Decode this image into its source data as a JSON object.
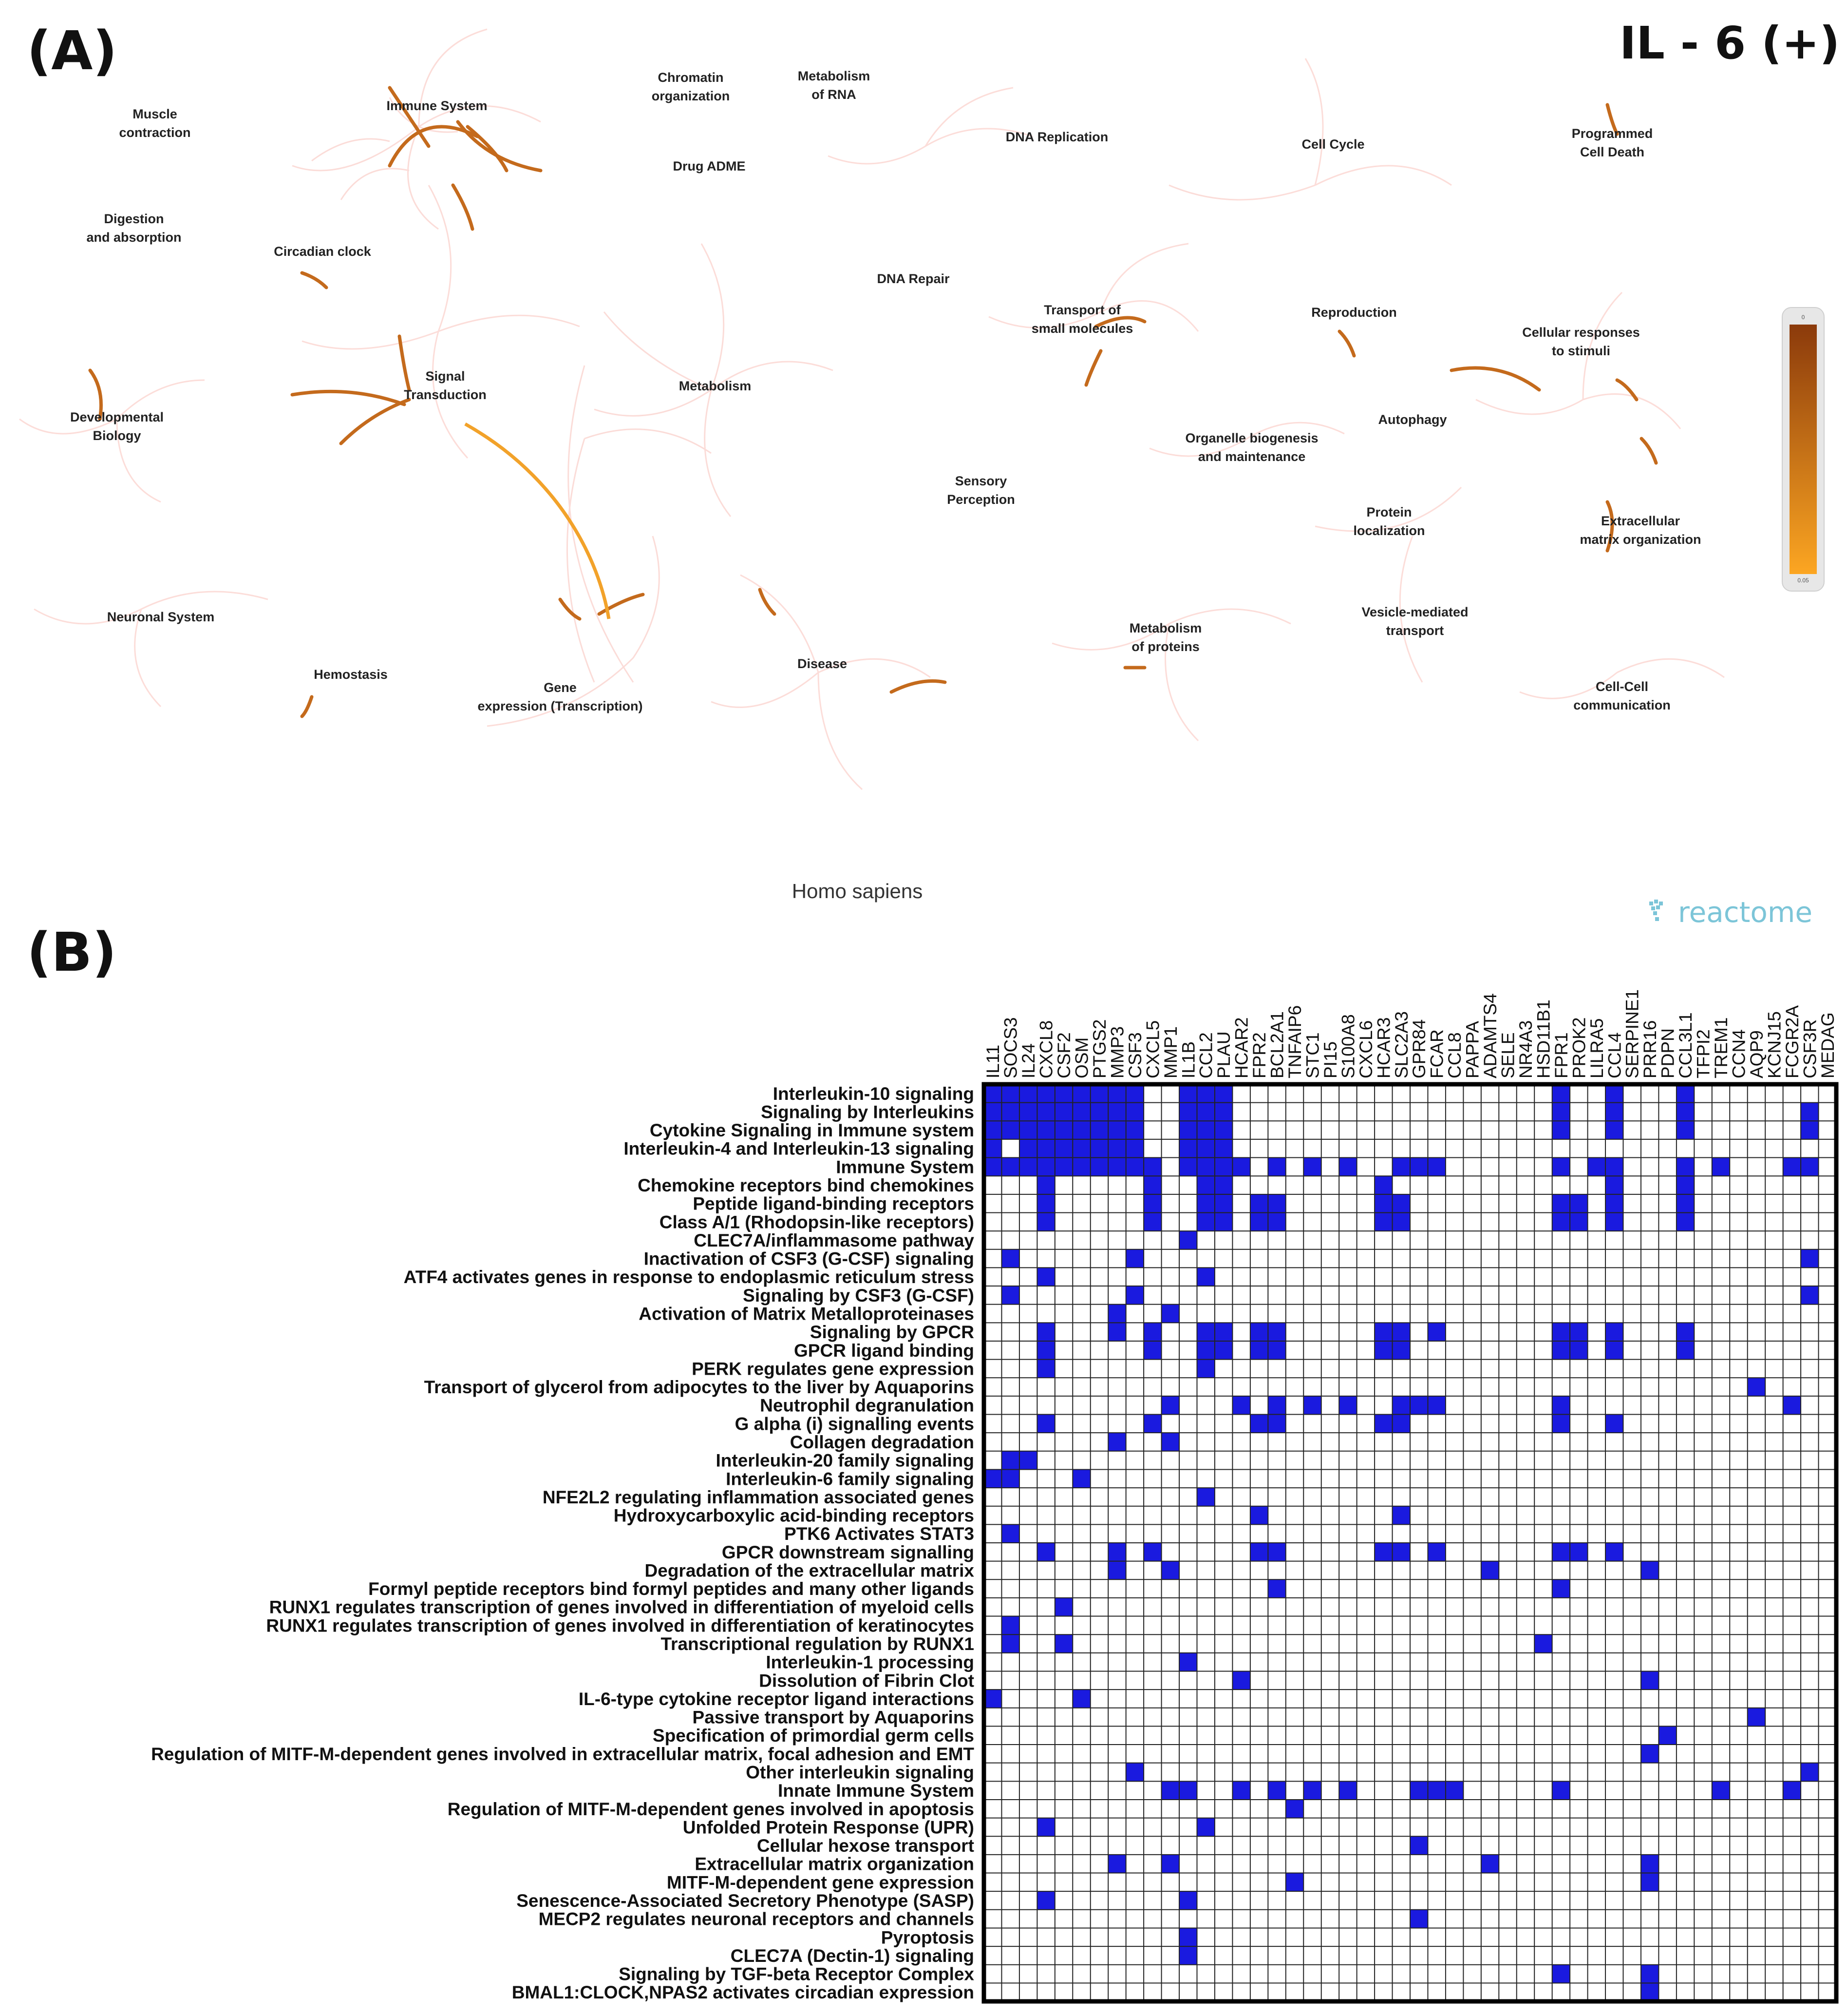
{
  "panel_a": {
    "label": "(A)",
    "condition": "IL - 6 (+)",
    "species": "Homo sapiens",
    "brand": "reactome",
    "legend": {
      "top_value": "0",
      "bottom_value": "0.05",
      "color_top": "#8b3a0b",
      "color_bottom": "#fca622"
    },
    "nodes": [
      {
        "id": "muscle",
        "label": "Muscle\ncontraction"
      },
      {
        "id": "immune",
        "label": "Immune System"
      },
      {
        "id": "chromatin",
        "label": "Chromatin\norganization"
      },
      {
        "id": "metrna",
        "label": "Metabolism\nof RNA"
      },
      {
        "id": "dnarep",
        "label": "DNA Replication"
      },
      {
        "id": "cellcycle",
        "label": "Cell Cycle"
      },
      {
        "id": "pcd",
        "label": "Programmed\nCell Death"
      },
      {
        "id": "digestion",
        "label": "Digestion\nand absorption"
      },
      {
        "id": "drugadme",
        "label": "Drug ADME"
      },
      {
        "id": "circadian",
        "label": "Circadian clock"
      },
      {
        "id": "dnarepair",
        "label": "DNA Repair"
      },
      {
        "id": "transport",
        "label": "Transport of\nsmall molecules"
      },
      {
        "id": "reproduction",
        "label": "Reproduction"
      },
      {
        "id": "cellresp",
        "label": "Cellular responses\nto stimuli"
      },
      {
        "id": "signal",
        "label": "Signal\nTransduction"
      },
      {
        "id": "metabolism",
        "label": "Metabolism"
      },
      {
        "id": "devbio",
        "label": "Developmental\nBiology"
      },
      {
        "id": "autophagy",
        "label": "Autophagy"
      },
      {
        "id": "organelle",
        "label": "Organelle biogenesis\nand maintenance"
      },
      {
        "id": "sensory",
        "label": "Sensory\nPerception"
      },
      {
        "id": "protloc",
        "label": "Protein\nlocalization"
      },
      {
        "id": "ecm",
        "label": "Extracellular\nmatrix organization"
      },
      {
        "id": "neuronal",
        "label": "Neuronal System"
      },
      {
        "id": "vesicle",
        "label": "Vesicle-mediated\ntransport"
      },
      {
        "id": "metprot",
        "label": "Metabolism\nof proteins"
      },
      {
        "id": "hemostasis",
        "label": "Hemostasis"
      },
      {
        "id": "disease",
        "label": "Disease"
      },
      {
        "id": "geneexp",
        "label": "Gene\nexpression (Transcription)"
      },
      {
        "id": "cellcell",
        "label": "Cell-Cell\ncommunication"
      }
    ]
  },
  "panel_b": {
    "label": "(B)"
  },
  "chart_data": {
    "type": "heatmap",
    "title": "",
    "colors": {
      "present": "#1a1adf",
      "absent": "#ffffff"
    },
    "columns": [
      "IL11",
      "SOCS3",
      "IL24",
      "CXCL8",
      "CSF2",
      "OSM",
      "PTGS2",
      "MMP3",
      "CSF3",
      "CXCL5",
      "MMP1",
      "IL1B",
      "CCL2",
      "PLAU",
      "HCAR2",
      "FPR2",
      "BCL2A1",
      "TNFAIP6",
      "STC1",
      "PI15",
      "S100A8",
      "CXCL6",
      "HCAR3",
      "SLC2A3",
      "GPR84",
      "FCAR",
      "CCL8",
      "PAPPA",
      "ADAMTS4",
      "SELE",
      "NR4A3",
      "HSD11B1",
      "FPR1",
      "PROK2",
      "LILRA5",
      "CCL4",
      "SERPINE1",
      "PRR16",
      "PDPN",
      "CCL3L1",
      "TFPI2",
      "TREM1",
      "CCN4",
      "AQP9",
      "KCNJ15",
      "FCGR2A",
      "CSF3R",
      "MEDAG"
    ],
    "rows": [
      "Interleukin-10 signaling",
      "Signaling by Interleukins",
      "Cytokine Signaling in Immune system",
      "Interleukin-4 and Interleukin-13 signaling",
      "Immune System",
      "Chemokine receptors bind chemokines",
      "Peptide ligand-binding receptors",
      "Class A/1 (Rhodopsin-like receptors)",
      "CLEC7A/inflammasome pathway",
      "Inactivation of CSF3 (G-CSF) signaling",
      "ATF4 activates genes in response to endoplasmic reticulum  stress",
      "Signaling by CSF3 (G-CSF)",
      "Activation of Matrix Metalloproteinases",
      "Signaling by GPCR",
      "GPCR ligand binding",
      "PERK regulates gene expression",
      "Transport of glycerol from adipocytes to the liver by Aquaporins",
      "Neutrophil degranulation",
      "G alpha (i) signalling events",
      "Collagen degradation",
      "Interleukin-20 family signaling",
      "Interleukin-6 family signaling",
      "NFE2L2 regulating inflammation associated genes",
      "Hydroxycarboxylic acid-binding receptors",
      "PTK6 Activates STAT3",
      "GPCR downstream signalling",
      "Degradation of the extracellular matrix",
      "Formyl peptide receptors bind formyl peptides and many other ligands",
      "RUNX1 regulates transcription of genes involved in differentiation of myeloid cells",
      "RUNX1 regulates transcription of genes involved in differentiation of keratinocytes",
      "Transcriptional regulation by RUNX1",
      "Interleukin-1 processing",
      "Dissolution of Fibrin Clot",
      "IL-6-type cytokine receptor ligand interactions",
      "Passive transport by Aquaporins",
      "Specification of primordial germ cells",
      "Regulation of MITF-M-dependent genes involved in extracellular matrix, focal adhesion and EMT",
      "Other interleukin signaling",
      "Innate Immune System",
      "Regulation of MITF-M-dependent genes involved in apoptosis",
      "Unfolded Protein Response (UPR)",
      "Cellular hexose transport",
      "Extracellular matrix organization",
      "MITF-M-dependent gene expression",
      "Senescence-Associated Secretory Phenotype (SASP)",
      "MECP2 regulates neuronal receptors and channels",
      "Pyroptosis",
      "CLEC7A (Dectin-1) signaling",
      "Signaling by TGF-beta Receptor Complex",
      "BMAL1:CLOCK,NPAS2 activates circadian expression"
    ],
    "cells": [
      [
        0,
        1,
        2,
        3,
        4,
        5,
        6,
        7,
        8,
        11,
        12,
        13,
        32,
        35,
        39
      ],
      [
        0,
        1,
        2,
        3,
        4,
        5,
        6,
        7,
        8,
        11,
        12,
        13,
        32,
        35,
        39,
        46
      ],
      [
        0,
        1,
        2,
        3,
        4,
        5,
        6,
        7,
        8,
        11,
        12,
        13,
        32,
        35,
        39,
        46
      ],
      [
        0,
        2,
        3,
        4,
        5,
        6,
        7,
        8,
        11,
        12,
        13
      ],
      [
        0,
        1,
        2,
        3,
        4,
        5,
        6,
        7,
        8,
        9,
        11,
        12,
        13,
        14,
        16,
        18,
        20,
        23,
        24,
        25,
        32,
        34,
        35,
        39,
        41,
        45,
        46
      ],
      [
        3,
        9,
        12,
        13,
        22,
        35,
        39
      ],
      [
        3,
        9,
        12,
        13,
        15,
        16,
        22,
        23,
        32,
        33,
        35,
        39
      ],
      [
        3,
        9,
        12,
        13,
        15,
        16,
        22,
        23,
        32,
        33,
        35,
        39
      ],
      [
        11
      ],
      [
        1,
        8,
        46
      ],
      [
        3,
        12
      ],
      [
        1,
        8,
        46
      ],
      [
        7,
        10
      ],
      [
        3,
        7,
        9,
        12,
        13,
        15,
        16,
        22,
        23,
        25,
        32,
        33,
        35,
        39
      ],
      [
        3,
        9,
        12,
        13,
        15,
        16,
        22,
        23,
        32,
        33,
        35,
        39
      ],
      [
        3,
        12
      ],
      [
        43
      ],
      [
        10,
        14,
        16,
        18,
        20,
        23,
        24,
        25,
        32,
        45
      ],
      [
        3,
        9,
        15,
        16,
        22,
        23,
        32,
        35
      ],
      [
        7,
        10
      ],
      [
        1,
        2
      ],
      [
        0,
        1,
        5
      ],
      [
        12
      ],
      [
        15,
        23
      ],
      [
        1
      ],
      [
        3,
        7,
        9,
        15,
        16,
        22,
        23,
        25,
        32,
        33,
        35
      ],
      [
        7,
        10,
        28,
        37
      ],
      [
        16,
        32
      ],
      [
        4
      ],
      [
        1
      ],
      [
        1,
        4,
        31
      ],
      [
        11
      ],
      [
        14,
        37
      ],
      [
        0,
        5
      ],
      [
        43
      ],
      [
        38
      ],
      [
        37
      ],
      [
        8,
        46
      ],
      [
        10,
        11,
        14,
        16,
        18,
        20,
        24,
        25,
        26,
        32,
        41,
        45
      ],
      [
        17
      ],
      [
        3,
        12
      ],
      [
        24
      ],
      [
        7,
        10,
        28,
        37
      ],
      [
        17,
        37
      ],
      [
        3,
        11
      ],
      [
        24
      ],
      [
        11
      ],
      [
        11
      ],
      [
        32,
        37
      ],
      [
        37
      ]
    ]
  }
}
